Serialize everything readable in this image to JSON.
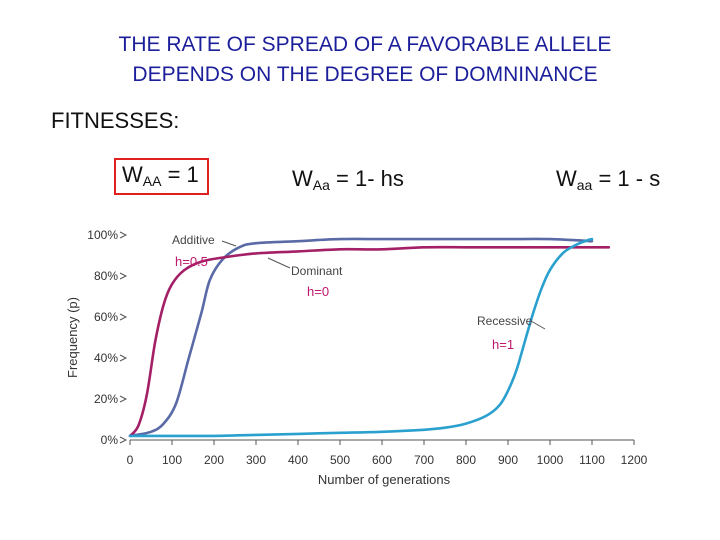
{
  "slide": {
    "title_line1": "THE RATE OF SPREAD OF A FAVORABLE ALLELE",
    "title_line2": "DEPENDS ON THE DEGREE OF DOMNINANCE",
    "fitness_label": "FITNESSES:",
    "formulas": {
      "waa_w": "W",
      "waa_sub": "AA",
      "waa_rest": " = 1",
      "wAa_w": "W",
      "wAa_sub": "Aa",
      "wAa_rest": " = 1- hs",
      "aa_w": "W",
      "aa_sub": "aa",
      "aa_rest": " = 1 - s"
    },
    "highlight_color": "#e0201f",
    "title_color": "#1c1f9a"
  },
  "chart_data": {
    "type": "line",
    "xlabel": "Number of generations",
    "ylabel": "Frequency (p)",
    "xlim": [
      0,
      1200
    ],
    "ylim": [
      0,
      100
    ],
    "x_ticks": [
      0,
      100,
      200,
      300,
      400,
      500,
      600,
      700,
      800,
      900,
      1000,
      1100,
      1200
    ],
    "y_ticks": [
      "0%",
      "20%",
      "40%",
      "60%",
      "80%",
      "100%"
    ],
    "y_tick_values": [
      0,
      20,
      40,
      60,
      80,
      100
    ],
    "grid": false,
    "series": [
      {
        "name": "Additive",
        "h_label": "h=0.5",
        "color": "#5a6aa6",
        "points": [
          [
            0,
            2
          ],
          [
            50,
            4
          ],
          [
            80,
            8
          ],
          [
            110,
            18
          ],
          [
            140,
            40
          ],
          [
            170,
            62
          ],
          [
            190,
            78
          ],
          [
            220,
            88
          ],
          [
            260,
            94
          ],
          [
            300,
            96
          ],
          [
            400,
            97
          ],
          [
            500,
            98
          ],
          [
            600,
            98
          ],
          [
            700,
            98
          ],
          [
            800,
            98
          ],
          [
            900,
            98
          ],
          [
            1000,
            98
          ],
          [
            1100,
            97
          ]
        ]
      },
      {
        "name": "Dominant",
        "h_label": "h=0",
        "color": "#a31f66",
        "points": [
          [
            0,
            2
          ],
          [
            20,
            7
          ],
          [
            40,
            22
          ],
          [
            60,
            48
          ],
          [
            80,
            66
          ],
          [
            100,
            76
          ],
          [
            130,
            83
          ],
          [
            170,
            87
          ],
          [
            220,
            89
          ],
          [
            300,
            91
          ],
          [
            400,
            92
          ],
          [
            500,
            93
          ],
          [
            600,
            93
          ],
          [
            700,
            94
          ],
          [
            800,
            94
          ],
          [
            900,
            94
          ],
          [
            1000,
            94
          ],
          [
            1100,
            94
          ],
          [
            1140,
            94
          ]
        ]
      },
      {
        "name": "Recessive",
        "h_label": "h=1",
        "color": "#2aa0cf",
        "points": [
          [
            0,
            2
          ],
          [
            100,
            2
          ],
          [
            200,
            2
          ],
          [
            300,
            2.5
          ],
          [
            400,
            3
          ],
          [
            500,
            3.5
          ],
          [
            600,
            4
          ],
          [
            700,
            5
          ],
          [
            750,
            6
          ],
          [
            800,
            8
          ],
          [
            850,
            12
          ],
          [
            880,
            17
          ],
          [
            900,
            24
          ],
          [
            920,
            34
          ],
          [
            940,
            48
          ],
          [
            960,
            62
          ],
          [
            980,
            74
          ],
          [
            1000,
            83
          ],
          [
            1030,
            91
          ],
          [
            1060,
            95
          ],
          [
            1090,
            97.5
          ],
          [
            1100,
            98
          ]
        ]
      }
    ]
  }
}
